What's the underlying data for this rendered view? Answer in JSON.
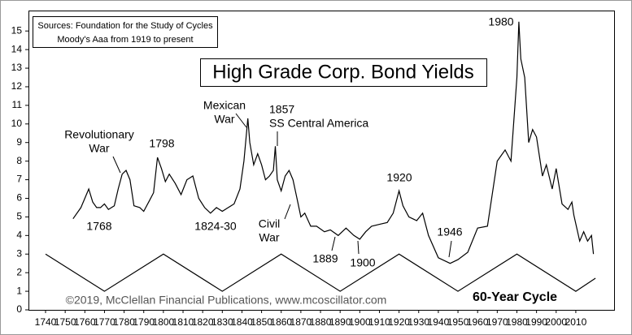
{
  "chart_data": {
    "type": "line",
    "title": "High Grade Corp. Bond Yields",
    "sources": [
      "Sources: Foundation for the Study of Cycles",
      "Moody's Aaa from 1919 to present"
    ],
    "copyright": "©2019, McClellan Financial Publications, www.mcoscillator.com",
    "annotations": [
      [
        "Revolutionary",
        "War"
      ],
      [
        "1768"
      ],
      [
        "1798"
      ],
      [
        "1824-30"
      ],
      [
        "Mexican",
        "War"
      ],
      [
        "1857",
        "SS Central America"
      ],
      [
        "Civil",
        "War"
      ],
      [
        "1889"
      ],
      [
        "1900"
      ],
      [
        "1920"
      ],
      [
        "1946"
      ],
      [
        "1980"
      ]
    ],
    "xlim": [
      1731.3,
      2029.5
    ],
    "ylim": [
      0,
      16.1
    ],
    "xticks": [
      1740,
      1750,
      1760,
      1770,
      1780,
      1790,
      1800,
      1810,
      1820,
      1830,
      1840,
      1850,
      1860,
      1870,
      1880,
      1890,
      1900,
      1910,
      1920,
      1930,
      1940,
      1950,
      1960,
      1970,
      1980,
      1990,
      2000,
      2010
    ],
    "yticks": [
      0,
      1,
      2,
      3,
      4,
      5,
      6,
      7,
      8,
      9,
      10,
      11,
      12,
      13,
      14,
      15
    ],
    "grid": false,
    "series": [
      {
        "color": "#000000",
        "x": [
          1754,
          1758,
          1760,
          1762,
          1764,
          1766,
          1768,
          1770,
          1772,
          1775,
          1777,
          1779,
          1781,
          1783,
          1785,
          1788,
          1790,
          1793,
          1795,
          1797,
          1799,
          1801,
          1803,
          1806,
          1809,
          1812,
          1815,
          1818,
          1821,
          1824,
          1827,
          1830,
          1833,
          1836,
          1839,
          1841,
          1843,
          1844,
          1846,
          1848,
          1850,
          1852,
          1854,
          1856,
          1857,
          1858,
          1860,
          1862,
          1864,
          1866,
          1868,
          1870,
          1872,
          1875,
          1878,
          1882,
          1885,
          1889,
          1893,
          1897,
          1900,
          1903,
          1906,
          1910,
          1914,
          1917,
          1920,
          1922,
          1925,
          1929,
          1932,
          1935,
          1940,
          1946,
          1950,
          1955,
          1960,
          1965,
          1970,
          1974,
          1977,
          1980,
          1981,
          1982,
          1984,
          1986,
          1988,
          1990,
          1993,
          1995,
          1998,
          2000,
          2003,
          2006,
          2008,
          2009,
          2012,
          2014,
          2016,
          2018,
          2019
        ],
        "values": [
          4.9,
          5.5,
          6.0,
          6.5,
          5.8,
          5.5,
          5.5,
          5.7,
          5.4,
          5.6,
          6.5,
          7.3,
          7.5,
          7.0,
          5.6,
          5.5,
          5.3,
          5.9,
          6.3,
          8.2,
          7.6,
          6.9,
          7.3,
          6.8,
          6.2,
          7.0,
          7.2,
          6.0,
          5.5,
          5.2,
          5.5,
          5.3,
          5.5,
          5.7,
          6.5,
          8.0,
          10.3,
          9.0,
          7.8,
          8.4,
          7.8,
          7.0,
          7.2,
          7.5,
          8.8,
          7.0,
          6.4,
          7.2,
          7.5,
          7.0,
          6.0,
          5.0,
          5.2,
          4.5,
          4.5,
          4.2,
          4.3,
          4.0,
          4.4,
          4.0,
          3.8,
          4.2,
          4.5,
          4.6,
          4.7,
          5.2,
          6.4,
          5.6,
          5.0,
          4.8,
          5.2,
          4.0,
          2.8,
          2.5,
          2.7,
          3.1,
          4.4,
          4.5,
          8.0,
          8.6,
          8.0,
          12.5,
          15.5,
          13.5,
          12.5,
          9.0,
          9.7,
          9.3,
          7.2,
          7.8,
          6.5,
          7.6,
          5.7,
          5.4,
          5.8,
          5.1,
          3.7,
          4.2,
          3.7,
          4.0,
          3.0
        ]
      },
      {
        "name": "60-Year Cycle",
        "color": "#000000",
        "x": [
          1740,
          1770,
          1800,
          1830,
          1860,
          1890,
          1920,
          1950,
          1980,
          2010,
          2020
        ],
        "values": [
          3,
          1,
          3,
          1,
          3,
          1,
          3,
          1,
          3,
          1,
          1.7
        ]
      }
    ]
  }
}
